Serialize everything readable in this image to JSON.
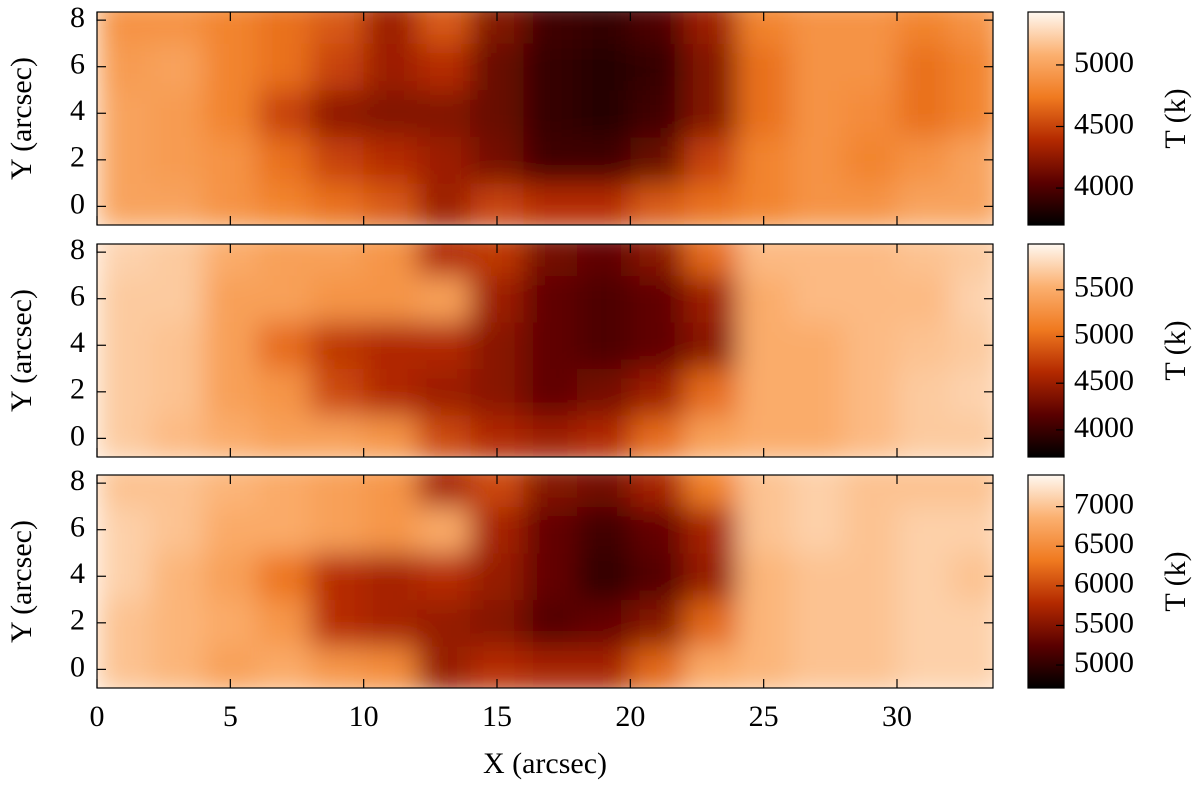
{
  "chart_data": [
    {
      "type": "heatmap",
      "ylabel": "Y (arcsec)",
      "colorbar_label": "T (k)",
      "colormap": [
        "#000000",
        "#5a0000",
        "#b42a00",
        "#f07a20",
        "#fbb070",
        "#fff8f0"
      ],
      "x": [
        1,
        3,
        5,
        7,
        9,
        11,
        13,
        15,
        17,
        19,
        21,
        23,
        25,
        27,
        29,
        31,
        33
      ],
      "y": [
        0,
        2,
        4,
        6,
        8
      ],
      "values": [
        [
          5000,
          5000,
          4900,
          4800,
          4700,
          4600,
          4300,
          4500,
          4400,
          4400,
          4600,
          4700,
          4800,
          4900,
          4900,
          5000,
          5000
        ],
        [
          5000,
          4950,
          4900,
          4700,
          4500,
          4400,
          4300,
          4150,
          3950,
          3950,
          4100,
          4500,
          4800,
          4900,
          4800,
          4900,
          5000
        ],
        [
          5000,
          4950,
          4800,
          4500,
          4250,
          4200,
          4200,
          4100,
          3900,
          3850,
          3950,
          4200,
          4700,
          4900,
          4850,
          4700,
          4800
        ],
        [
          4950,
          5000,
          4800,
          4700,
          4500,
          4300,
          4400,
          4100,
          3900,
          3850,
          3900,
          4200,
          4700,
          4900,
          4900,
          4700,
          4800
        ],
        [
          4900,
          4900,
          4800,
          4700,
          4600,
          4300,
          4600,
          4200,
          3950,
          3900,
          4000,
          4300,
          4800,
          4900,
          4900,
          4800,
          4900
        ]
      ],
      "xlim": [
        0,
        33.6
      ],
      "ylim": [
        -0.8,
        8.35
      ],
      "xticks": [
        0,
        5,
        10,
        15,
        20,
        25,
        30
      ],
      "show_xticklabels": false,
      "yticks": [
        0,
        2,
        4,
        6,
        8
      ],
      "clim": [
        3700,
        5430
      ],
      "cticks": [
        4000,
        4500,
        5000
      ]
    },
    {
      "type": "heatmap",
      "ylabel": "Y (arcsec)",
      "colorbar_label": "T (k)",
      "colormap": [
        "#000000",
        "#5a0000",
        "#b42a00",
        "#f07a20",
        "#fbb070",
        "#fff8f0"
      ],
      "x": [
        1,
        3,
        5,
        7,
        9,
        11,
        13,
        15,
        17,
        19,
        21,
        23,
        25,
        27,
        29,
        31,
        33
      ],
      "y": [
        0,
        2,
        4,
        6,
        8
      ],
      "values": [
        [
          5700,
          5600,
          5500,
          5400,
          5400,
          5300,
          4800,
          4600,
          4500,
          4600,
          5000,
          5400,
          5500,
          5500,
          5600,
          5700,
          5700
        ],
        [
          5700,
          5650,
          5400,
          5300,
          4800,
          4600,
          4500,
          4400,
          4200,
          4300,
          4500,
          5000,
          5500,
          5500,
          5600,
          5700,
          5750
        ],
        [
          5700,
          5650,
          5400,
          5000,
          4700,
          4600,
          4600,
          4400,
          4200,
          4100,
          4200,
          4400,
          5500,
          5500,
          5600,
          5650,
          5700
        ],
        [
          5700,
          5700,
          5400,
          5400,
          5300,
          5300,
          5400,
          4500,
          4200,
          4100,
          4200,
          4500,
          5500,
          5600,
          5600,
          5600,
          5750
        ],
        [
          5750,
          5700,
          5500,
          5400,
          5400,
          5300,
          4600,
          4700,
          4300,
          4200,
          4400,
          5000,
          5600,
          5600,
          5600,
          5650,
          5700
        ]
      ],
      "xlim": [
        0,
        33.6
      ],
      "ylim": [
        -0.8,
        8.35
      ],
      "xticks": [
        0,
        5,
        10,
        15,
        20,
        25,
        30
      ],
      "show_xticklabels": false,
      "yticks": [
        0,
        2,
        4,
        6,
        8
      ],
      "clim": [
        3710,
        5990
      ],
      "cticks": [
        4000,
        4500,
        5000,
        5500
      ]
    },
    {
      "type": "heatmap",
      "ylabel": "Y (arcsec)",
      "xlabel": "X (arcsec)",
      "colorbar_label": "T (k)",
      "colormap": [
        "#000000",
        "#5a0000",
        "#b42a00",
        "#f07a20",
        "#fbb070",
        "#fff8f0"
      ],
      "x": [
        1,
        3,
        5,
        7,
        9,
        11,
        13,
        15,
        17,
        19,
        21,
        23,
        25,
        27,
        29,
        31,
        33
      ],
      "y": [
        0,
        2,
        4,
        6,
        8
      ],
      "values": [
        [
          7000,
          6900,
          6700,
          6800,
          6600,
          6500,
          5600,
          5800,
          5700,
          5700,
          6200,
          6800,
          6900,
          7000,
          7000,
          7100,
          7100
        ],
        [
          7000,
          6900,
          6800,
          6600,
          5800,
          5700,
          5600,
          5500,
          5200,
          5300,
          5500,
          6200,
          6900,
          7000,
          7000,
          7100,
          7100
        ],
        [
          7100,
          6900,
          6700,
          6300,
          5800,
          5700,
          5800,
          5600,
          5300,
          5000,
          5200,
          5600,
          6900,
          7000,
          7000,
          7100,
          7000
        ],
        [
          7100,
          7000,
          6800,
          6800,
          6700,
          6600,
          6800,
          5700,
          5300,
          5100,
          5300,
          5700,
          7000,
          7100,
          7000,
          7100,
          7100
        ],
        [
          7000,
          7000,
          6900,
          6800,
          6700,
          6600,
          5700,
          6000,
          5500,
          5400,
          5700,
          6400,
          7000,
          7100,
          7000,
          7000,
          7000
        ]
      ],
      "xlim": [
        0,
        33.6
      ],
      "ylim": [
        -0.8,
        8.35
      ],
      "xticks": [
        0,
        5,
        10,
        15,
        20,
        25,
        30
      ],
      "show_xticklabels": true,
      "yticks": [
        0,
        2,
        4,
        6,
        8
      ],
      "clim": [
        4710,
        7400
      ],
      "cticks": [
        5000,
        5500,
        6000,
        6500,
        7000
      ]
    }
  ]
}
